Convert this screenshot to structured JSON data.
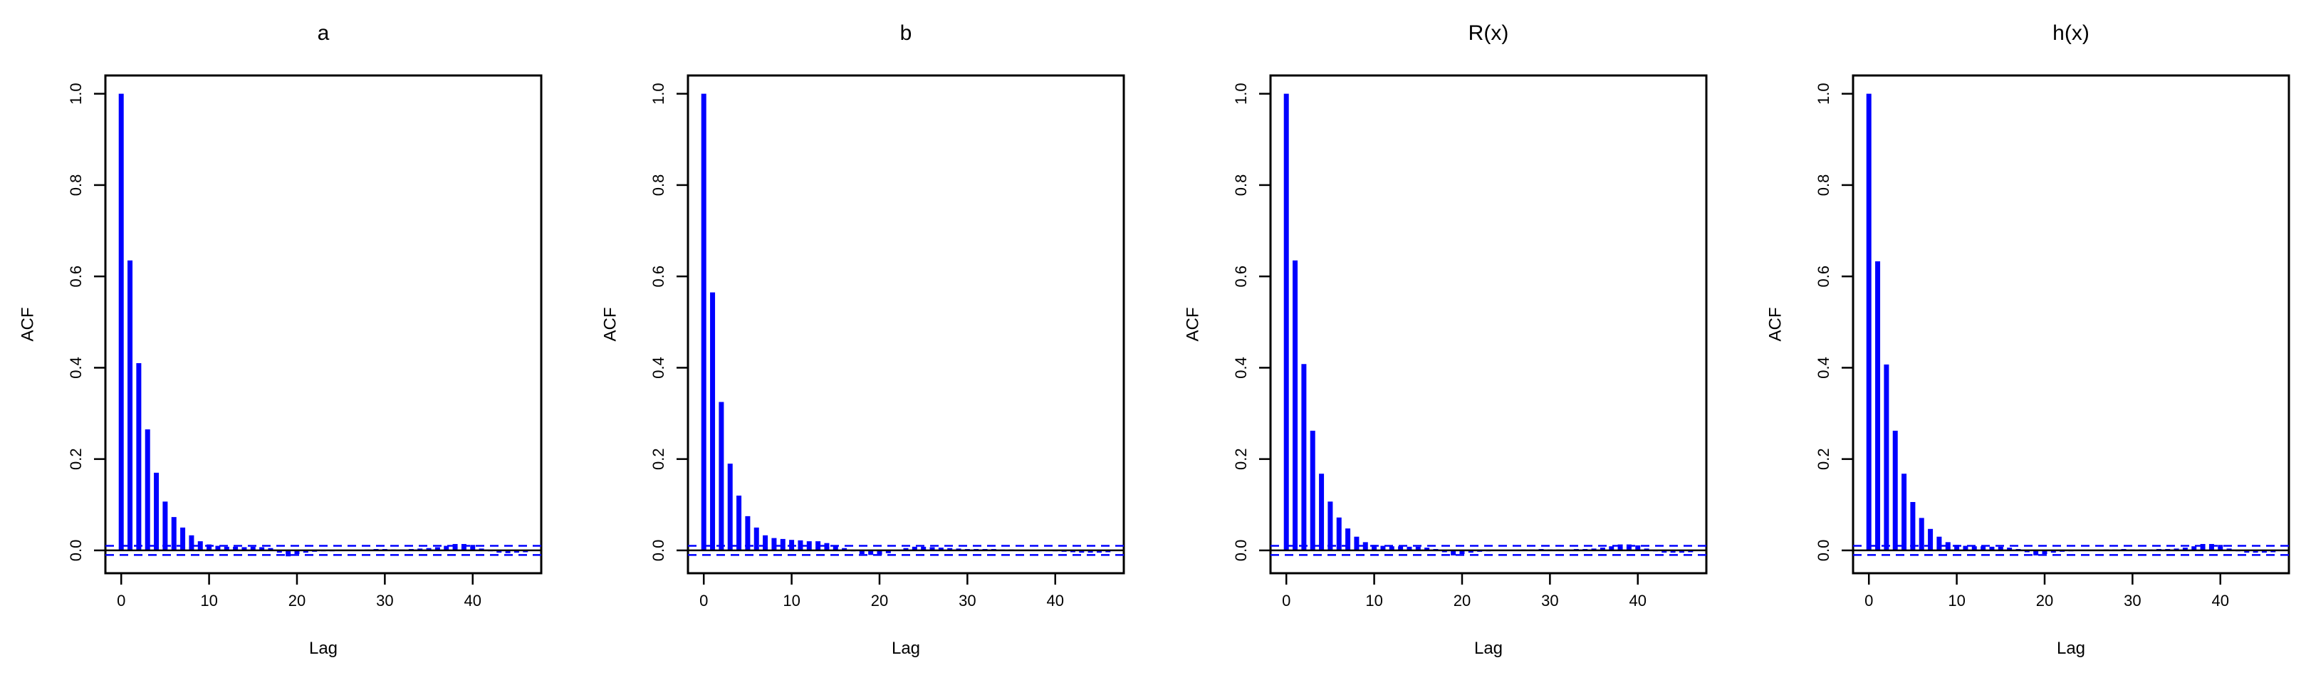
{
  "chart_data": [
    {
      "type": "bar",
      "title": "a",
      "xlabel": "Lag",
      "ylabel": "ACF",
      "xlim": [
        -1.8,
        47.8
      ],
      "ylim": [
        -0.05,
        1.04
      ],
      "x_ticks": [
        "0",
        "10",
        "20",
        "30",
        "40"
      ],
      "y_ticks": [
        "0.0",
        "0.2",
        "0.4",
        "0.6",
        "0.8",
        "1.0"
      ],
      "confidence_band": 0.01,
      "colors": {
        "bars": "#0000ff",
        "band": "#0000ff",
        "zero": "#000000"
      },
      "lags": [
        0,
        1,
        2,
        3,
        4,
        5,
        6,
        7,
        8,
        9,
        10,
        11,
        12,
        13,
        14,
        15,
        16,
        17,
        18,
        19,
        20,
        21,
        22,
        23,
        24,
        25,
        26,
        27,
        28,
        29,
        30,
        31,
        32,
        33,
        34,
        35,
        36,
        37,
        38,
        39,
        40,
        41,
        42,
        43,
        44,
        45,
        46
      ],
      "values": [
        1.0,
        0.635,
        0.41,
        0.265,
        0.17,
        0.107,
        0.073,
        0.05,
        0.033,
        0.02,
        0.013,
        0.01,
        0.008,
        0.008,
        0.007,
        0.008,
        0.007,
        0.005,
        -0.005,
        -0.013,
        -0.008,
        -0.005,
        -0.003,
        -0.002,
        -0.002,
        -0.001,
        0.0,
        0.001,
        0.002,
        0.003,
        0.003,
        0.002,
        0.002,
        0.003,
        0.004,
        0.005,
        0.007,
        0.01,
        0.014,
        0.014,
        0.012,
        0.004,
        -0.002,
        -0.005,
        -0.006,
        -0.005,
        -0.004
      ]
    },
    {
      "type": "bar",
      "title": "b",
      "xlabel": "Lag",
      "ylabel": "ACF",
      "xlim": [
        -1.8,
        47.8
      ],
      "ylim": [
        -0.05,
        1.04
      ],
      "x_ticks": [
        "0",
        "10",
        "20",
        "30",
        "40"
      ],
      "y_ticks": [
        "0.0",
        "0.2",
        "0.4",
        "0.6",
        "0.8",
        "1.0"
      ],
      "confidence_band": 0.01,
      "colors": {
        "bars": "#0000ff",
        "band": "#0000ff",
        "zero": "#000000"
      },
      "lags": [
        0,
        1,
        2,
        3,
        4,
        5,
        6,
        7,
        8,
        9,
        10,
        11,
        12,
        13,
        14,
        15,
        16,
        17,
        18,
        19,
        20,
        21,
        22,
        23,
        24,
        25,
        26,
        27,
        28,
        29,
        30,
        31,
        32,
        33,
        34,
        35,
        36,
        37,
        38,
        39,
        40,
        41,
        42,
        43,
        44,
        45,
        46
      ],
      "values": [
        1.0,
        0.565,
        0.325,
        0.19,
        0.12,
        0.075,
        0.05,
        0.033,
        0.027,
        0.025,
        0.023,
        0.022,
        0.02,
        0.02,
        0.016,
        0.01,
        0.005,
        -0.002,
        -0.008,
        -0.01,
        -0.01,
        -0.006,
        0.001,
        0.005,
        0.008,
        0.008,
        0.007,
        0.006,
        0.005,
        0.004,
        0.003,
        0.003,
        0.003,
        0.003,
        0.002,
        0.002,
        0.001,
        0.001,
        0.0,
        -0.001,
        -0.002,
        -0.003,
        -0.004,
        -0.005,
        -0.005,
        -0.005,
        -0.004
      ]
    },
    {
      "type": "bar",
      "title": "R(x)",
      "xlabel": "Lag",
      "ylabel": "ACF",
      "xlim": [
        -1.8,
        47.8
      ],
      "ylim": [
        -0.05,
        1.04
      ],
      "x_ticks": [
        "0",
        "10",
        "20",
        "30",
        "40"
      ],
      "y_ticks": [
        "0.0",
        "0.2",
        "0.4",
        "0.6",
        "0.8",
        "1.0"
      ],
      "confidence_band": 0.01,
      "colors": {
        "bars": "#0000ff",
        "band": "#0000ff",
        "zero": "#000000"
      },
      "lags": [
        0,
        1,
        2,
        3,
        4,
        5,
        6,
        7,
        8,
        9,
        10,
        11,
        12,
        13,
        14,
        15,
        16,
        17,
        18,
        19,
        20,
        21,
        22,
        23,
        24,
        25,
        26,
        27,
        28,
        29,
        30,
        31,
        32,
        33,
        34,
        35,
        36,
        37,
        38,
        39,
        40,
        41,
        42,
        43,
        44,
        45,
        46
      ],
      "values": [
        1.0,
        0.635,
        0.408,
        0.262,
        0.168,
        0.107,
        0.072,
        0.048,
        0.03,
        0.018,
        0.012,
        0.01,
        0.009,
        0.009,
        0.008,
        0.008,
        0.006,
        0.003,
        -0.004,
        -0.011,
        -0.008,
        -0.005,
        -0.003,
        -0.002,
        -0.001,
        0.0,
        0.001,
        0.002,
        0.002,
        0.003,
        0.002,
        0.002,
        0.002,
        0.003,
        0.003,
        0.004,
        0.006,
        0.009,
        0.013,
        0.013,
        0.011,
        0.004,
        -0.002,
        -0.005,
        -0.005,
        -0.005,
        -0.004
      ]
    },
    {
      "type": "bar",
      "title": "h(x)",
      "xlabel": "Lag",
      "ylabel": "ACF",
      "xlim": [
        -1.8,
        47.8
      ],
      "ylim": [
        -0.05,
        1.04
      ],
      "x_ticks": [
        "0",
        "10",
        "20",
        "30",
        "40"
      ],
      "y_ticks": [
        "0.0",
        "0.2",
        "0.4",
        "0.6",
        "0.8",
        "1.0"
      ],
      "confidence_band": 0.01,
      "colors": {
        "bars": "#0000ff",
        "band": "#0000ff",
        "zero": "#000000"
      },
      "lags": [
        0,
        1,
        2,
        3,
        4,
        5,
        6,
        7,
        8,
        9,
        10,
        11,
        12,
        13,
        14,
        15,
        16,
        17,
        18,
        19,
        20,
        21,
        22,
        23,
        24,
        25,
        26,
        27,
        28,
        29,
        30,
        31,
        32,
        33,
        34,
        35,
        36,
        37,
        38,
        39,
        40,
        41,
        42,
        43,
        44,
        45,
        46
      ],
      "values": [
        1.0,
        0.633,
        0.407,
        0.262,
        0.168,
        0.106,
        0.071,
        0.047,
        0.03,
        0.018,
        0.012,
        0.01,
        0.009,
        0.009,
        0.008,
        0.008,
        0.006,
        0.003,
        -0.004,
        -0.011,
        -0.008,
        -0.005,
        -0.003,
        -0.002,
        -0.001,
        0.0,
        0.001,
        0.002,
        0.002,
        0.003,
        0.002,
        0.002,
        0.002,
        0.003,
        0.003,
        0.004,
        0.006,
        0.009,
        0.014,
        0.014,
        0.012,
        0.004,
        -0.002,
        -0.005,
        -0.005,
        -0.005,
        -0.004
      ]
    }
  ]
}
